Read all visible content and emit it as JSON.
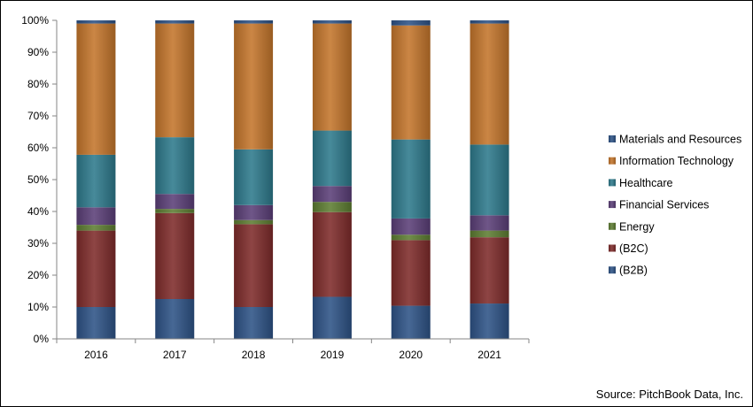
{
  "source_note": "Source: PitchBook Data, Inc.",
  "chart_data": {
    "type": "bar",
    "stacked": true,
    "percent": true,
    "categories": [
      "2016",
      "2017",
      "2018",
      "2019",
      "2020",
      "2021"
    ],
    "ylim": [
      0,
      100
    ],
    "y_ticks": [
      0,
      10,
      20,
      30,
      40,
      50,
      60,
      70,
      80,
      90,
      100
    ],
    "y_tick_labels": [
      "0%",
      "10%",
      "20%",
      "30%",
      "40%",
      "50%",
      "60%",
      "70%",
      "80%",
      "90%",
      "100%"
    ],
    "grid": false,
    "legend_position": "right",
    "series": [
      {
        "name": "(B2B)",
        "color": "#2E5387",
        "values": [
          10.0,
          12.5,
          10.0,
          13.2,
          10.4,
          11.1
        ]
      },
      {
        "name": "(B2C)",
        "color": "#7F2C2B",
        "values": [
          24.0,
          27.0,
          26.0,
          26.6,
          20.6,
          20.8
        ]
      },
      {
        "name": "Energy",
        "color": "#5E7D32",
        "values": [
          1.8,
          1.3,
          1.3,
          3.2,
          1.7,
          2.1
        ]
      },
      {
        "name": "Financial Services",
        "color": "#5B3F78",
        "values": [
          5.5,
          4.7,
          4.7,
          5.0,
          5.1,
          4.8
        ]
      },
      {
        "name": "Healthcare",
        "color": "#2E7A8C",
        "values": [
          16.5,
          17.8,
          17.5,
          17.4,
          24.8,
          22.2
        ]
      },
      {
        "name": "Information Technology",
        "color": "#C4762C",
        "values": [
          41.2,
          35.7,
          39.5,
          33.6,
          35.8,
          38.0
        ]
      },
      {
        "name": "Materials and Resources",
        "color": "#2E5387",
        "values": [
          1.0,
          1.0,
          1.0,
          1.0,
          1.6,
          1.0
        ]
      }
    ]
  }
}
